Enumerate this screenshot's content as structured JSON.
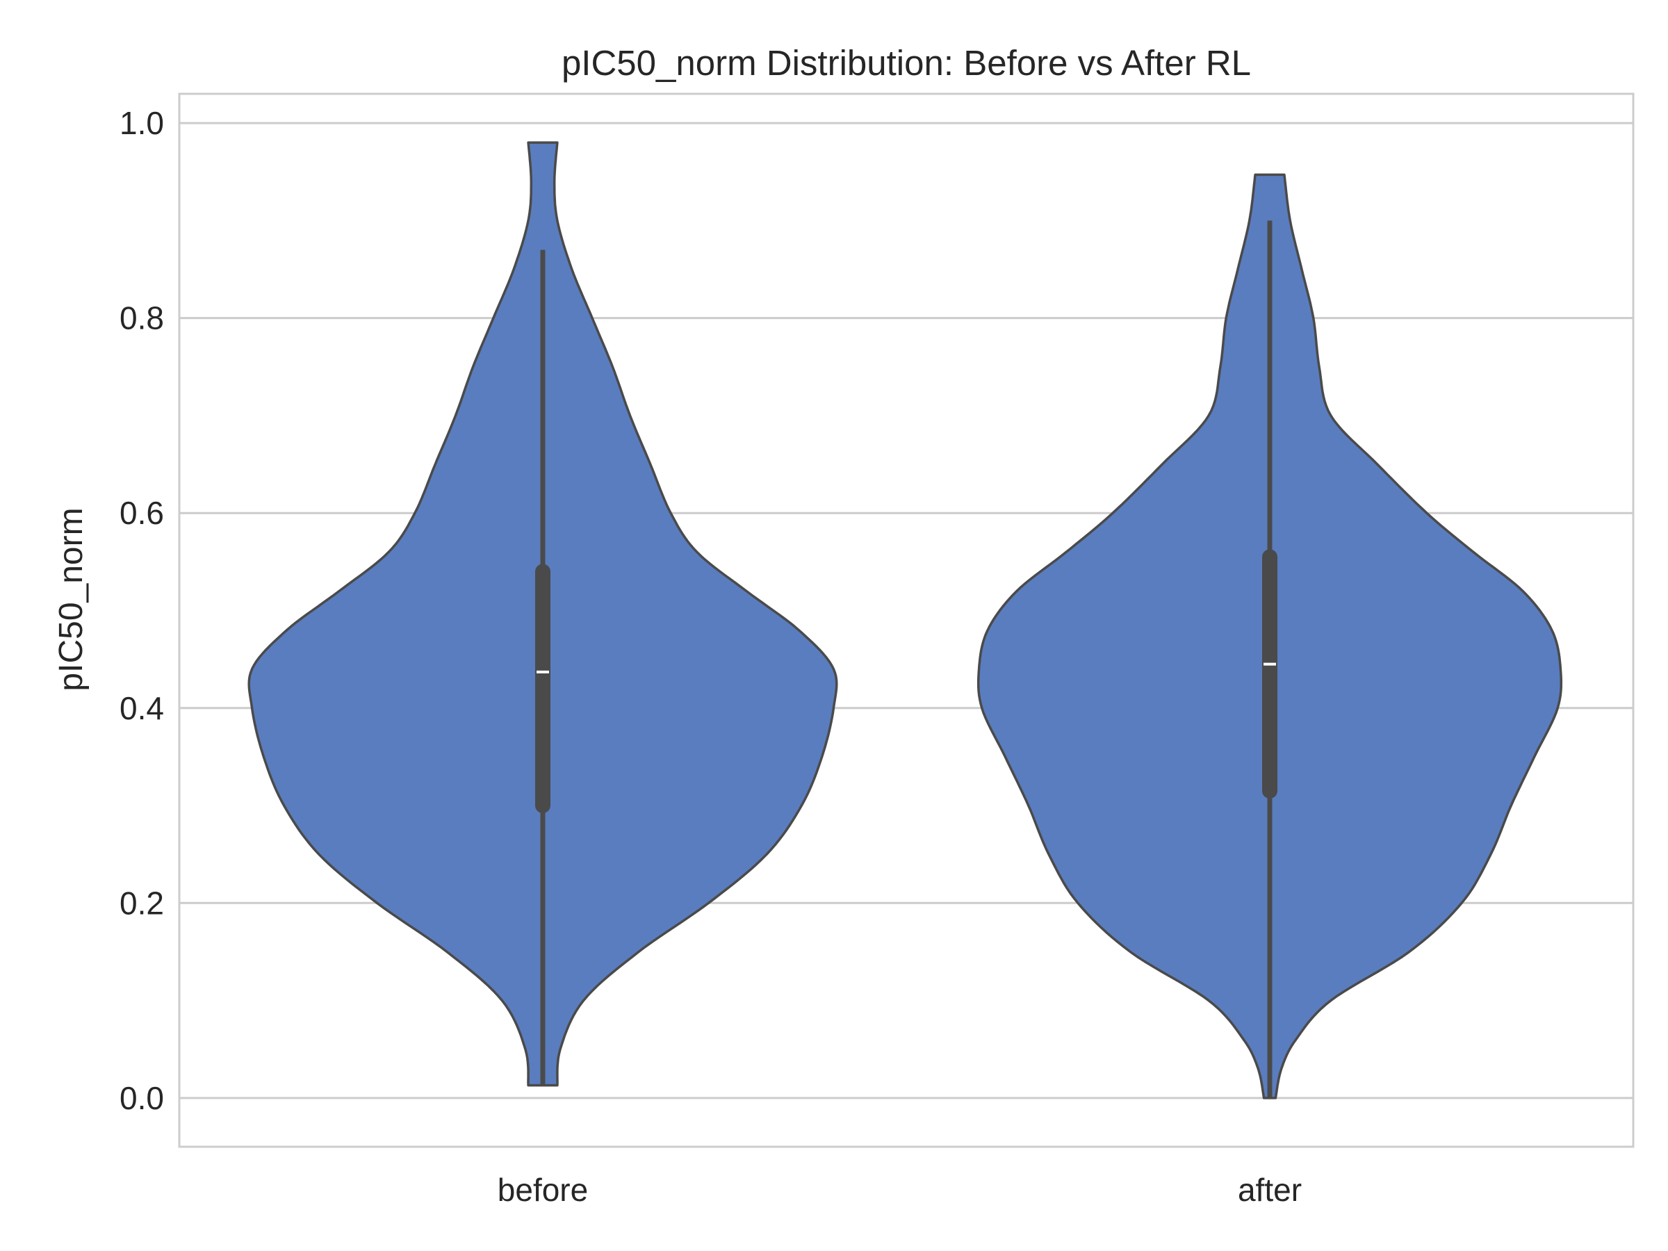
{
  "chart_data": {
    "type": "violin",
    "title": "pIC50_norm Distribution: Before vs After RL",
    "xlabel": "",
    "ylabel": "pIC50_norm",
    "ylim": [
      -0.05,
      1.03
    ],
    "yticks": [
      0.0,
      0.2,
      0.4,
      0.6,
      0.8,
      1.0
    ],
    "ytick_labels": [
      "0.0",
      "0.2",
      "0.4",
      "0.6",
      "0.8",
      "1.0"
    ],
    "grid": "horizontal",
    "legend": "none",
    "fill_color": "#5a7dbf",
    "edge_color": "#4a4a4a",
    "box_color": "#4a4a4a",
    "median_color": "#ffffff",
    "categories": [
      "before",
      "after"
    ],
    "violins": [
      {
        "category": "before",
        "min": 0.013,
        "max": 0.98,
        "q1": 0.3,
        "median": 0.437,
        "q3": 0.54,
        "whisker_low": 0.013,
        "whisker_high": 0.87,
        "density_profile": [
          [
            0.013,
            0.05
          ],
          [
            0.05,
            0.06
          ],
          [
            0.1,
            0.14
          ],
          [
            0.15,
            0.33
          ],
          [
            0.2,
            0.57
          ],
          [
            0.25,
            0.77
          ],
          [
            0.3,
            0.89
          ],
          [
            0.35,
            0.96
          ],
          [
            0.4,
            1.0
          ],
          [
            0.44,
            1.0
          ],
          [
            0.48,
            0.88
          ],
          [
            0.52,
            0.7
          ],
          [
            0.56,
            0.53
          ],
          [
            0.6,
            0.44
          ],
          [
            0.65,
            0.37
          ],
          [
            0.7,
            0.3
          ],
          [
            0.75,
            0.24
          ],
          [
            0.8,
            0.17
          ],
          [
            0.85,
            0.1
          ],
          [
            0.9,
            0.05
          ],
          [
            0.94,
            0.04
          ],
          [
            0.98,
            0.05
          ]
        ]
      },
      {
        "category": "after",
        "min": 0.0,
        "max": 0.947,
        "q1": 0.315,
        "median": 0.445,
        "q3": 0.555,
        "whisker_low": 0.0,
        "whisker_high": 0.9,
        "density_profile": [
          [
            0.0,
            0.02
          ],
          [
            0.03,
            0.04
          ],
          [
            0.06,
            0.09
          ],
          [
            0.1,
            0.21
          ],
          [
            0.15,
            0.48
          ],
          [
            0.2,
            0.66
          ],
          [
            0.25,
            0.76
          ],
          [
            0.3,
            0.83
          ],
          [
            0.35,
            0.91
          ],
          [
            0.4,
            0.99
          ],
          [
            0.44,
            1.0
          ],
          [
            0.48,
            0.97
          ],
          [
            0.52,
            0.87
          ],
          [
            0.56,
            0.7
          ],
          [
            0.6,
            0.54
          ],
          [
            0.65,
            0.37
          ],
          [
            0.7,
            0.21
          ],
          [
            0.75,
            0.17
          ],
          [
            0.8,
            0.15
          ],
          [
            0.85,
            0.11
          ],
          [
            0.9,
            0.07
          ],
          [
            0.947,
            0.05
          ]
        ]
      }
    ]
  }
}
